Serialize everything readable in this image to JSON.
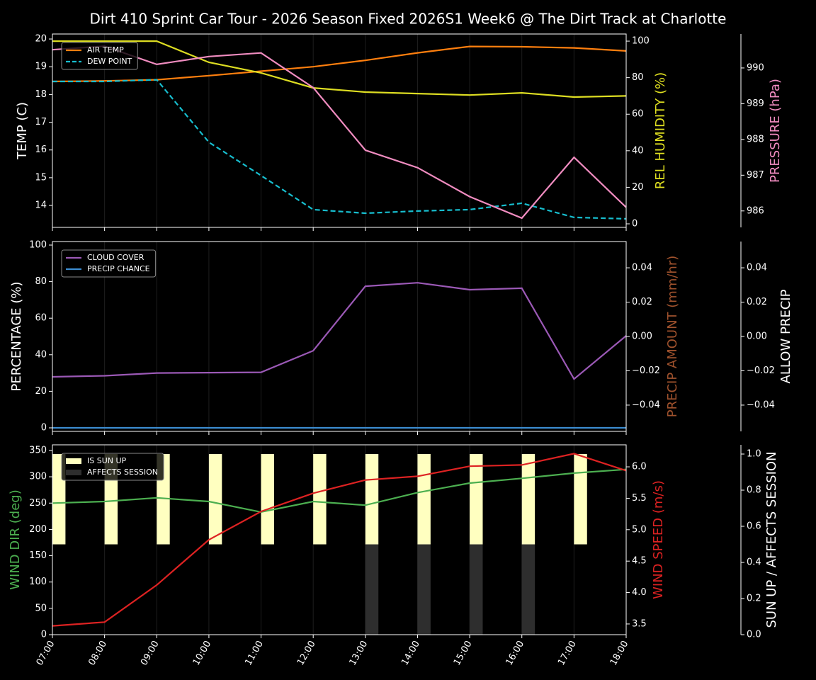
{
  "chart_data": [
    {
      "type": "line",
      "title": "Dirt 410 Sprint Car Tour - 2026 Season Fixed 2026S1 Week6 @ The Dirt Track at Charlotte",
      "ylabel": "TEMP (C)",
      "ylabel_color": "#ffffff",
      "ylim": [
        13.21,
        20.18
      ],
      "yticks": [
        14,
        15,
        16,
        17,
        18,
        19,
        20
      ],
      "y2label": "REL HUMIDITY (%)",
      "y2label_color": "#e0e020",
      "y2lim": [
        -1.94,
        103.9
      ],
      "y2ticks": [
        0,
        20,
        40,
        60,
        80,
        100
      ],
      "y3label": "PRESSURE (hPa)",
      "y3label_color": "#f08cc0",
      "y3lim": [
        985.54,
        990.95
      ],
      "y3ticks": [
        986,
        987,
        988,
        989,
        990
      ],
      "xgrid": true,
      "legend": "upper left",
      "series": [
        {
          "name": "AIR TEMP",
          "color": "#ff7f0e",
          "axis": "y",
          "values": [
            18.47,
            18.49,
            18.53,
            18.68,
            18.84,
            19.0,
            19.23,
            19.5,
            19.73,
            19.72,
            19.68,
            19.57
          ]
        },
        {
          "name": "DEW POINT",
          "color": "#17becf",
          "axis": "y",
          "dash": true,
          "values": [
            18.47,
            18.47,
            18.53,
            16.28,
            15.08,
            13.85,
            13.72,
            13.8,
            13.85,
            14.08,
            13.57,
            13.52
          ]
        },
        {
          "color": "#dddd22",
          "axis": "y2",
          "values": [
            100,
            100,
            100,
            88.4,
            82.6,
            74.4,
            72.1,
            71.3,
            70.5,
            71.7,
            69.4,
            70.0
          ]
        },
        {
          "color": "#f08cc0",
          "axis": "y3",
          "values": [
            990.51,
            990.61,
            990.1,
            990.32,
            990.42,
            989.45,
            987.7,
            987.21,
            986.4,
            985.8,
            987.5,
            986.1
          ]
        }
      ]
    },
    {
      "type": "line",
      "ylabel": "PERCENTAGE (%)",
      "ylabel_color": "#ffffff",
      "ylim": [
        -1.94,
        101.94
      ],
      "yticks": [
        0,
        20,
        40,
        60,
        80,
        100
      ],
      "y2label": "PRECIP AMOUNT (mm/hr)",
      "y2label_color": "#a0522d",
      "y2lim": [
        -0.0553,
        0.0553
      ],
      "y2ticks": [
        {
          "value": -0.04,
          "label": "−0.04"
        },
        {
          "value": -0.02,
          "label": "−0.02"
        },
        {
          "value": 0,
          "label": "0.00"
        },
        0.02,
        0.04
      ],
      "y3label": "ALLOW PRECIP",
      "y3label_color": "#ffffff",
      "y3lim": [
        -0.0553,
        0.0553
      ],
      "y3ticks": [
        {
          "value": -0.04,
          "label": "−0.04"
        },
        {
          "value": -0.02,
          "label": "−0.02"
        },
        {
          "value": 0,
          "label": "0.00"
        },
        0.02,
        0.04
      ],
      "xgrid": true,
      "legend": "upper left",
      "series": [
        {
          "name": "CLOUD COVER",
          "color": "#9b59b6",
          "axis": "y",
          "values": [
            27.9,
            28.5,
            30.0,
            30.2,
            30.4,
            42.2,
            77.5,
            79.4,
            75.6,
            76.4,
            26.7,
            50.4
          ]
        },
        {
          "name": "PRECIP CHANCE",
          "color": "#3c8cd0",
          "axis": "y",
          "values": [
            0,
            0,
            0,
            0,
            0,
            0,
            0,
            0,
            0,
            0,
            0,
            0
          ]
        }
      ]
    },
    {
      "type": "line",
      "categories": [
        "07:00",
        "08:00",
        "09:00",
        "10:00",
        "11:00",
        "12:00",
        "13:00",
        "14:00",
        "15:00",
        "16:00",
        "17:00",
        "18:00"
      ],
      "ylabel": "WIND DIR (deg)",
      "ylabel_color": "#4caf50",
      "ylim": [
        0,
        360.7
      ],
      "yticks": [
        0,
        50,
        100,
        150,
        200,
        250,
        300,
        350
      ],
      "y2label": "WIND SPEED (m/s)",
      "y2label_color": "#dd2222",
      "y2lim": [
        3.33,
        6.35
      ],
      "y2ticks": [
        3.5,
        {
          "value": 4,
          "label": "4.0"
        },
        4.5,
        {
          "value": 5,
          "label": "5.0"
        },
        5.5,
        {
          "value": 6,
          "label": "6.0"
        }
      ],
      "y3label": "SUN UP / AFFECTS SESSION",
      "y3label_color": "#ffffff",
      "y3lim": [
        0,
        1.051
      ],
      "y3ticks": [
        {
          "value": 0,
          "label": "0.0"
        },
        0.2,
        0.4,
        0.6,
        0.8,
        {
          "value": 1,
          "label": "1.0"
        }
      ],
      "xgrid": true,
      "legend": "upper left",
      "series": [
        {
          "name": "IS SUN UP",
          "type": "bar",
          "color": "#ffffc0",
          "axis": "y3",
          "bottom": 0.5,
          "values": [
            1,
            1,
            1,
            1,
            1,
            1,
            1,
            1,
            1,
            1,
            1,
            null
          ]
        },
        {
          "name": "AFFECTS SESSION",
          "type": "bar",
          "color": "#2e2e2e",
          "axis": "y3",
          "bottom": 0,
          "values": [
            null,
            null,
            null,
            null,
            null,
            null,
            0.5,
            0.5,
            0.5,
            0.5,
            null,
            null
          ]
        },
        {
          "color": "#4caf50",
          "axis": "y",
          "values": [
            250,
            253,
            260,
            253,
            233,
            253,
            246,
            270,
            288,
            297,
            307,
            314
          ]
        },
        {
          "color": "#dd2222",
          "axis": "y2",
          "values": [
            3.47,
            3.53,
            4.12,
            4.84,
            5.29,
            5.58,
            5.79,
            5.85,
            6.01,
            6.03,
            6.21,
            5.94
          ]
        }
      ]
    }
  ]
}
